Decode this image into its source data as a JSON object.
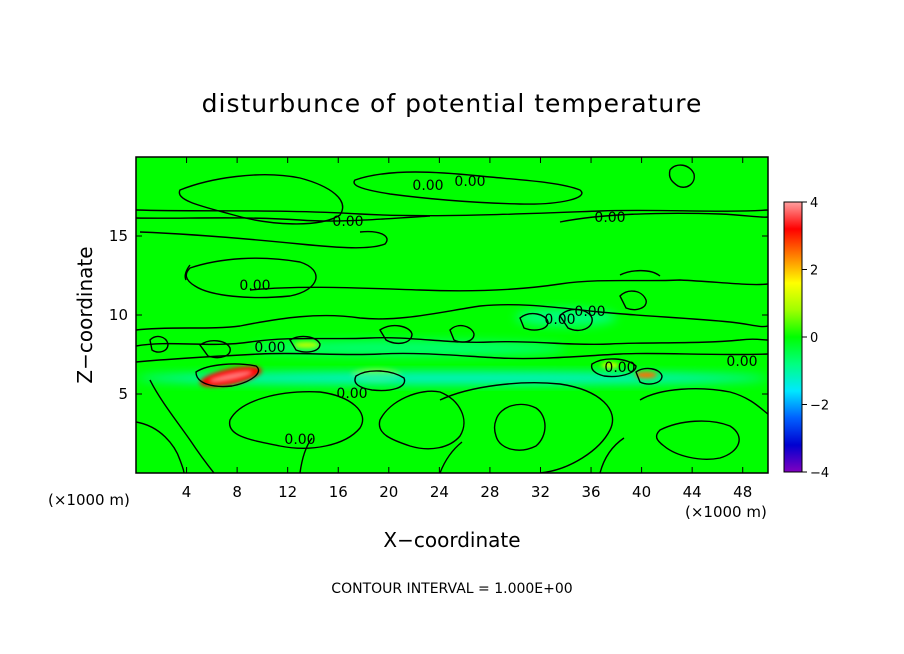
{
  "chart_data": {
    "type": "heatmap",
    "title": "disturbunce of potential temperature",
    "xlabel": "X−coordinate",
    "ylabel": "Z−coordinate",
    "x_unit": "(×1000 m)",
    "z_unit": "(×1000 m)",
    "xlim": [
      0,
      50
    ],
    "ylim": [
      0,
      20
    ],
    "x_ticks": [
      4,
      8,
      12,
      16,
      20,
      24,
      28,
      32,
      36,
      40,
      44,
      48
    ],
    "y_ticks": [
      5,
      10,
      15
    ],
    "colorbar": {
      "range": [
        -4,
        4
      ],
      "ticks": [
        "4",
        "2",
        "0",
        "−2",
        "−4"
      ],
      "tick_values": [
        4,
        2,
        0,
        -2,
        -4
      ],
      "colors": [
        "#8000c0",
        "#0000d0",
        "#0060ff",
        "#00e8ff",
        "#00ff80",
        "#00ff00",
        "#a0ff00",
        "#ffff00",
        "#ff8000",
        "#ff0000",
        "#ffa0a0"
      ]
    },
    "contour_label": "0.00",
    "background_value": 0.0,
    "features": [
      {
        "name": "warm-streak",
        "x": [
          5,
          10
        ],
        "z": [
          5.6,
          6.6
        ],
        "value": 3.2
      },
      {
        "name": "warm-spot-40",
        "x": [
          39.5,
          41.2
        ],
        "z": [
          6.0,
          6.4
        ],
        "value": 2.5
      },
      {
        "name": "warm-spot-38",
        "x": [
          36.8,
          38.2
        ],
        "z": [
          6.6,
          7.0
        ],
        "value": 1.2
      },
      {
        "name": "warm-spot-13",
        "x": [
          12.5,
          14.5
        ],
        "z": [
          7.9,
          8.3
        ],
        "value": 1.0
      },
      {
        "name": "warm-patch-19",
        "x": [
          17,
          21
        ],
        "z": [
          5.8,
          6.6
        ],
        "value": 0.9
      },
      {
        "name": "cold-layer",
        "x": [
          0,
          50
        ],
        "z": [
          5.6,
          6.4
        ],
        "value": -1.3
      },
      {
        "name": "cold-layer-upper",
        "x": [
          9,
          34
        ],
        "z": [
          7.4,
          8.4
        ],
        "value": -0.7
      },
      {
        "name": "cold-patches-10",
        "x": [
          30,
          38
        ],
        "z": [
          9.3,
          10.4
        ],
        "value": -0.8
      }
    ],
    "annotation": "CONTOUR INTERVAL = 1.000E+00"
  }
}
